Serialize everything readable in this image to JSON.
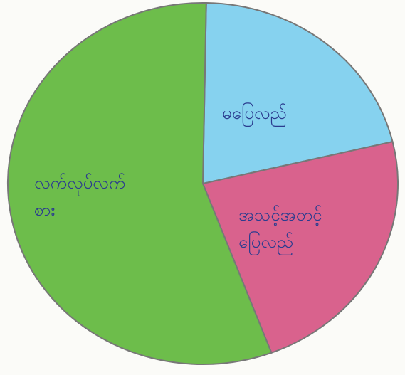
{
  "chart_data": {
    "type": "pie",
    "categories": [
      "မပြေလည်",
      "အသင့်အတင့်\nပြေလည်",
      "လက်လုပ်လက်\nစား"
    ],
    "values": [
      21,
      23,
      56
    ],
    "colors": [
      "#86d2ef",
      "#d9628d",
      "#6dbd4b"
    ]
  }
}
